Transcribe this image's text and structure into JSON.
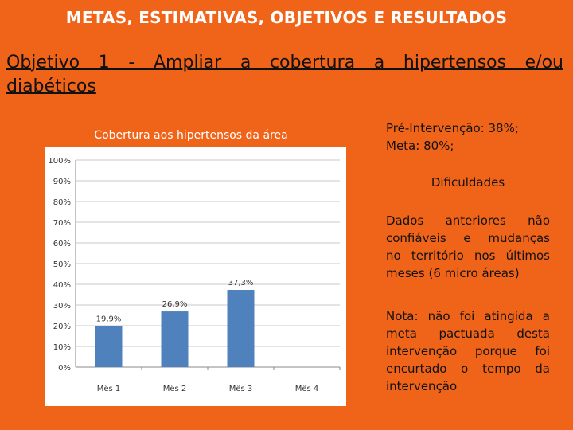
{
  "slide": {
    "title": "METAS, ESTIMATIVAS, OBJETIVOS E RESULTADOS",
    "objective": "Objetivo 1 - Ampliar a cobertura a hipertensos e/ou diabéticos"
  },
  "side": {
    "pre_line1": "Pré-Intervenção: 38%;",
    "pre_line2": "Meta: 80%;",
    "difficulties_heading": "Dificuldades",
    "difficulties_lines": [
      "Dados anteriores não",
      "confiáveis e mudanças",
      "no território nos últimos",
      "meses (6 micro áreas)"
    ],
    "note_lines": [
      "Nota: não foi atingida a",
      "meta pactuada desta",
      "intervenção porque foi",
      "encurtado o tempo da",
      "intervenção"
    ]
  },
  "chart_data": {
    "type": "bar",
    "title": "Cobertura aos hipertensos da área",
    "categories": [
      "Mês 1",
      "Mês 2",
      "Mês 3",
      "Mês 4"
    ],
    "values": [
      19.9,
      26.9,
      37.3,
      null
    ],
    "data_labels": [
      "19,9%",
      "26,9%",
      "37,3%",
      ""
    ],
    "ylim": [
      0,
      100
    ],
    "yticks": [
      "0%",
      "10%",
      "20%",
      "30%",
      "40%",
      "50%",
      "60%",
      "70%",
      "80%",
      "90%",
      "100%"
    ],
    "grid": true,
    "bar_color": "#4f81bd"
  }
}
